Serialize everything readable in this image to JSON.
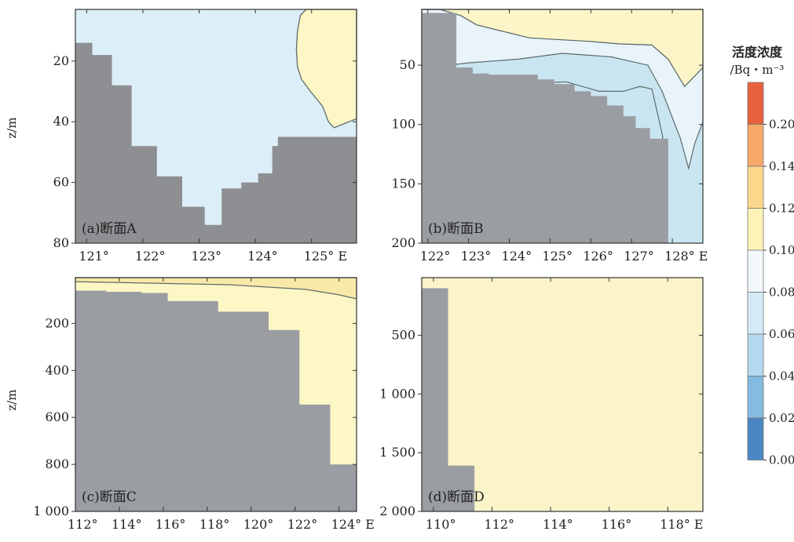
{
  "chart_data": [
    {
      "type": "heatmap",
      "panel_label": "(a)断面A",
      "ylabel": "z/m",
      "x_ticks": [
        "121°",
        "122°",
        "123°",
        "124°",
        "125° E"
      ],
      "x_values": [
        121,
        122,
        123,
        124,
        125
      ],
      "xlim": [
        120.8,
        125.8
      ],
      "y_ticks": [
        "20",
        "40",
        "60",
        "80"
      ],
      "y_values": [
        20,
        40,
        60,
        80
      ],
      "ylim": [
        3,
        80
      ],
      "colors": {
        "background": "#dceef7",
        "high": "#fdf7c6",
        "bottom": "#8e8f93"
      },
      "contour_line_color": "#5f6b6b",
      "high_region": [
        [
          125.8,
          3
        ],
        [
          124.9,
          3
        ],
        [
          124.8,
          5
        ],
        [
          124.75,
          10
        ],
        [
          124.73,
          16
        ],
        [
          124.75,
          22
        ],
        [
          124.82,
          26
        ],
        [
          124.98,
          30
        ],
        [
          125.2,
          35
        ],
        [
          125.3,
          40
        ],
        [
          125.4,
          42
        ],
        [
          125.8,
          39
        ]
      ],
      "bathymetry_profile": [
        [
          120.8,
          14
        ],
        [
          121.1,
          14
        ],
        [
          121.1,
          18
        ],
        [
          121.45,
          18
        ],
        [
          121.45,
          28
        ],
        [
          121.8,
          28
        ],
        [
          121.8,
          48
        ],
        [
          122.25,
          48
        ],
        [
          122.25,
          58
        ],
        [
          122.7,
          58
        ],
        [
          122.7,
          68
        ],
        [
          123.1,
          68
        ],
        [
          123.1,
          74
        ],
        [
          123.4,
          74
        ],
        [
          123.4,
          62
        ],
        [
          123.75,
          62
        ],
        [
          123.75,
          60
        ],
        [
          124.05,
          60
        ],
        [
          124.05,
          57
        ],
        [
          124.3,
          57
        ],
        [
          124.3,
          48
        ],
        [
          124.4,
          48
        ],
        [
          124.4,
          45
        ],
        [
          125.8,
          45
        ]
      ]
    },
    {
      "type": "heatmap",
      "panel_label": "(b)断面B",
      "x_ticks": [
        "122°",
        "123°",
        "124°",
        "125°",
        "126°",
        "127°",
        "128° E"
      ],
      "x_values": [
        122,
        123,
        124,
        125,
        126,
        127,
        128
      ],
      "xlim": [
        121.85,
        128.75
      ],
      "y_ticks": [
        "50",
        "100",
        "150",
        "200"
      ],
      "y_values": [
        50,
        100,
        150,
        200
      ],
      "ylim": [
        3,
        200
      ],
      "colors": {
        "band_top": "#fcf5c8",
        "band_mid": "#e8f4fa",
        "band_low": "#c9e5f1",
        "bottom": "#9a9da2"
      },
      "contour_line_color": "#5f6b6b",
      "upper_band": [
        [
          121.85,
          3
        ],
        [
          128.75,
          3
        ],
        [
          128.75,
          52
        ],
        [
          128.3,
          68
        ],
        [
          127.9,
          45
        ],
        [
          127.5,
          33
        ],
        [
          126.7,
          32
        ],
        [
          126,
          30
        ],
        [
          124.5,
          27
        ],
        [
          123.2,
          16
        ],
        [
          122.8,
          8
        ],
        [
          122.3,
          3
        ]
      ],
      "mid_band": [
        [
          121.85,
          3
        ],
        [
          122.3,
          3
        ],
        [
          122.8,
          8
        ],
        [
          123.2,
          16
        ],
        [
          124.5,
          27
        ],
        [
          126,
          30
        ],
        [
          126.7,
          32
        ],
        [
          127.5,
          33
        ],
        [
          127.9,
          45
        ],
        [
          128.3,
          68
        ],
        [
          128.75,
          52
        ],
        [
          128.75,
          98
        ],
        [
          128.55,
          116
        ],
        [
          128.4,
          137
        ],
        [
          128.2,
          112
        ],
        [
          127.75,
          72
        ],
        [
          127.4,
          50
        ],
        [
          126.5,
          43
        ],
        [
          125.3,
          40
        ],
        [
          124.2,
          45
        ],
        [
          123,
          48
        ],
        [
          122.5,
          50
        ],
        [
          121.85,
          50
        ]
      ],
      "low_band": [
        [
          124.7,
          65
        ],
        [
          125.4,
          64
        ],
        [
          126.2,
          72
        ],
        [
          126.8,
          72
        ],
        [
          127.2,
          68
        ],
        [
          127.5,
          70
        ],
        [
          127.75,
          108
        ],
        [
          127.85,
          128
        ],
        [
          127.1,
          112
        ],
        [
          126.4,
          100
        ],
        [
          125.6,
          86
        ],
        [
          124.9,
          78
        ]
      ],
      "bathymetry_profile": [
        [
          121.85,
          6
        ],
        [
          122.7,
          6
        ],
        [
          122.7,
          52
        ],
        [
          123.1,
          52
        ],
        [
          123.1,
          57
        ],
        [
          123.5,
          57
        ],
        [
          123.5,
          58
        ],
        [
          124.7,
          58
        ],
        [
          124.7,
          62
        ],
        [
          125.1,
          62
        ],
        [
          125.1,
          66
        ],
        [
          125.6,
          66
        ],
        [
          125.6,
          72
        ],
        [
          126,
          72
        ],
        [
          126,
          76
        ],
        [
          126.4,
          76
        ],
        [
          126.4,
          84
        ],
        [
          126.8,
          84
        ],
        [
          126.8,
          93
        ],
        [
          127.1,
          93
        ],
        [
          127.1,
          103
        ],
        [
          127.45,
          103
        ],
        [
          127.45,
          112
        ],
        [
          127.9,
          112
        ],
        [
          127.9,
          200
        ]
      ]
    },
    {
      "type": "heatmap",
      "panel_label": "(c)断面C",
      "ylabel": "z/m",
      "x_ticks": [
        "112°",
        "114°",
        "116°",
        "118°",
        "120°",
        "122°",
        "124° E"
      ],
      "x_values": [
        112,
        114,
        116,
        118,
        120,
        122,
        124
      ],
      "xlim": [
        112,
        124.8
      ],
      "y_ticks": [
        "200",
        "400",
        "600",
        "800",
        "1 000"
      ],
      "y_values": [
        200,
        400,
        600,
        800,
        1000
      ],
      "ylim": [
        5,
        1000
      ],
      "colors": {
        "water": "#fdf7c6",
        "top_band": "#f9e9a8",
        "bottom": "#9a9da2"
      },
      "contour_line_color": "#5f6b6b",
      "top_band": [
        [
          112,
          5
        ],
        [
          124.8,
          5
        ],
        [
          124.8,
          95
        ],
        [
          124,
          78
        ],
        [
          122.5,
          55
        ],
        [
          119,
          35
        ],
        [
          112,
          22
        ]
      ],
      "bathymetry_profile": [
        [
          112,
          60
        ],
        [
          113.4,
          60
        ],
        [
          113.4,
          65
        ],
        [
          115,
          65
        ],
        [
          115,
          70
        ],
        [
          116.2,
          70
        ],
        [
          116.2,
          105
        ],
        [
          118.5,
          105
        ],
        [
          118.5,
          150
        ],
        [
          120.8,
          150
        ],
        [
          120.8,
          228
        ],
        [
          122.2,
          228
        ],
        [
          122.2,
          545
        ],
        [
          123.6,
          545
        ],
        [
          123.6,
          800
        ],
        [
          124.8,
          800
        ]
      ]
    },
    {
      "type": "heatmap",
      "panel_label": "(d)断面D",
      "x_ticks": [
        "110°",
        "112°",
        "114°",
        "116°",
        "118° E"
      ],
      "x_values": [
        110,
        112,
        114,
        116,
        118
      ],
      "xlim": [
        109.6,
        119.2
      ],
      "y_ticks": [
        "500",
        "1 000",
        "1 500",
        "2 000"
      ],
      "y_values": [
        500,
        1000,
        1500,
        2000
      ],
      "ylim": [
        10,
        2000
      ],
      "colors": {
        "water": "#fbf4c9",
        "bottom": "#9a9da2"
      },
      "bathymetry_profile": [
        [
          109.6,
          100
        ],
        [
          110.5,
          100
        ],
        [
          110.5,
          1610
        ],
        [
          111.4,
          1610
        ],
        [
          111.4,
          2000
        ]
      ]
    }
  ],
  "colorbar": {
    "title": "活度浓度",
    "subtitle": "/Bq・m⁻³",
    "labels": [
      "0.20",
      "0.14",
      "0.12",
      "0.10",
      "0.08",
      "0.06",
      "0.04",
      "0.02",
      "0.00"
    ],
    "segment_colors": [
      "#e8603d",
      "#f6a868",
      "#fbd78c",
      "#fdf3b6",
      "#f2f8fc",
      "#d4eaf6",
      "#b3d9ee",
      "#84bbe0",
      "#4a86c4"
    ]
  }
}
